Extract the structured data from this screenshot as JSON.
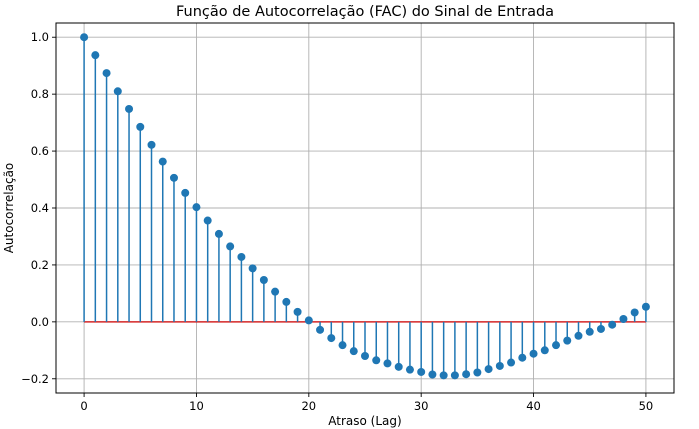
{
  "chart_data": {
    "type": "stem",
    "title": "Função de Autocorrelação (FAC) do Sinal de Entrada",
    "xlabel": "Atraso (Lag)",
    "ylabel": "Autocorrelação",
    "xlim": [
      -2.5,
      52.5
    ],
    "ylim": [
      -0.25,
      1.05
    ],
    "xticks": [
      0,
      10,
      20,
      30,
      40,
      50
    ],
    "yticks": [
      -0.2,
      0.0,
      0.2,
      0.4,
      0.6,
      0.8,
      1.0
    ],
    "xtick_labels": [
      "0",
      "10",
      "20",
      "30",
      "40",
      "50"
    ],
    "ytick_labels": [
      "−0.2",
      "0.0",
      "0.2",
      "0.4",
      "0.6",
      "0.8",
      "1.0"
    ],
    "grid": true,
    "baseline": 0,
    "colors": {
      "stem": "#1f77b4",
      "marker": "#1f77b4",
      "baseline": "#d62728",
      "grid": "#b0b0b0"
    },
    "x": [
      0,
      1,
      2,
      3,
      4,
      5,
      6,
      7,
      8,
      9,
      10,
      11,
      12,
      13,
      14,
      15,
      16,
      17,
      18,
      19,
      20,
      21,
      22,
      23,
      24,
      25,
      26,
      27,
      28,
      29,
      30,
      31,
      32,
      33,
      34,
      35,
      36,
      37,
      38,
      39,
      40,
      41,
      42,
      43,
      44,
      45,
      46,
      47,
      48,
      49,
      50
    ],
    "values": [
      1.0,
      0.937,
      0.874,
      0.81,
      0.748,
      0.685,
      0.622,
      0.563,
      0.506,
      0.453,
      0.403,
      0.356,
      0.309,
      0.265,
      0.228,
      0.188,
      0.147,
      0.106,
      0.07,
      0.035,
      0.005,
      -0.028,
      -0.057,
      -0.082,
      -0.103,
      -0.12,
      -0.135,
      -0.146,
      -0.158,
      -0.168,
      -0.176,
      -0.185,
      -0.188,
      -0.188,
      -0.184,
      -0.178,
      -0.166,
      -0.155,
      -0.143,
      -0.126,
      -0.112,
      -0.1,
      -0.082,
      -0.066,
      -0.049,
      -0.035,
      -0.025,
      -0.01,
      0.01,
      0.033,
      0.053
    ]
  }
}
